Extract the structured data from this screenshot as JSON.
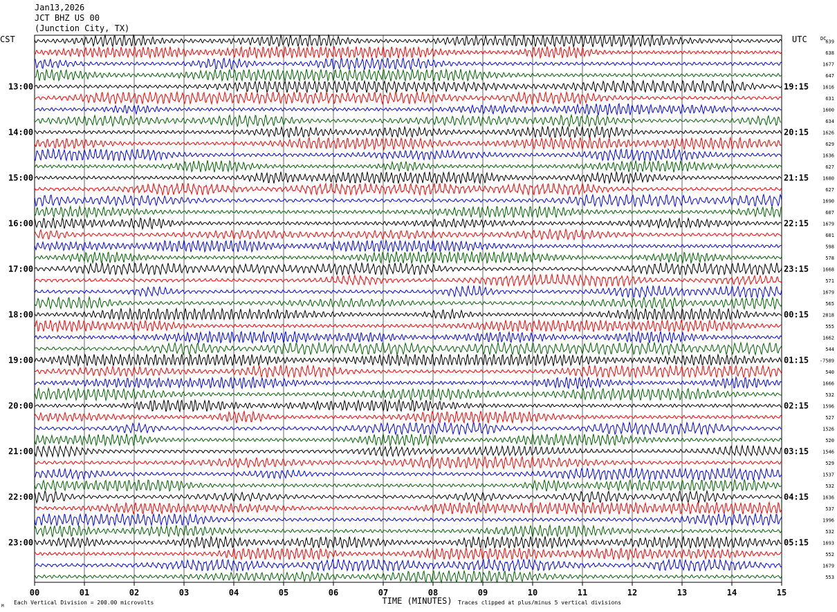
{
  "header": {
    "date": "Jan13,2026",
    "station": "JCT BHZ US 00",
    "location": "(Junction City, TX)"
  },
  "chart_data": {
    "type": "line",
    "title": "JCT BHZ US 00",
    "left_timezone": "CST",
    "right_timezone": "UTC",
    "dc_label": "DC",
    "xlabel": "TIME (MINUTES)",
    "x_ticks": [
      "00",
      "01",
      "02",
      "03",
      "04",
      "05",
      "06",
      "07",
      "08",
      "09",
      "10",
      "11",
      "12",
      "13",
      "14",
      "15"
    ],
    "xlim": [
      0,
      15
    ],
    "trace_colors": [
      "#000000",
      "#ff0000",
      "#0000ff",
      "#006400"
    ],
    "rows_per_hour": 4,
    "left_hour_labels": [
      "13:00",
      "14:00",
      "15:00",
      "16:00",
      "17:00",
      "18:00",
      "19:00",
      "20:00",
      "21:00",
      "22:00",
      "23:00"
    ],
    "right_hour_labels": [
      "19:15",
      "20:15",
      "21:15",
      "22:15",
      "23:15",
      "00:15",
      "01:15",
      "02:15",
      "03:15",
      "04:15",
      "05:15"
    ],
    "dc_values": [
      "639",
      "638",
      "1677",
      "647",
      "1616",
      "631",
      "1600",
      "634",
      "1626",
      "629",
      "1636",
      "627",
      "1680",
      "627",
      "1690",
      "607",
      "1679",
      "601",
      "598",
      "578",
      "1668",
      "571",
      "1679",
      "565",
      "2818",
      "555",
      "1662",
      "544",
      "-7589",
      "540",
      "1666",
      "532",
      "1596",
      "527",
      "1526",
      "520",
      "1546",
      "529",
      "1537",
      "532",
      "1636",
      "537",
      "1996",
      "532",
      "1693",
      "552",
      "1679",
      "553"
    ],
    "footer_left": "Each Vertical Division =  200.00 microvolts",
    "footer_right": "Traces clipped at plus/minus 5 vertical divisions",
    "corner_mark": "M"
  }
}
